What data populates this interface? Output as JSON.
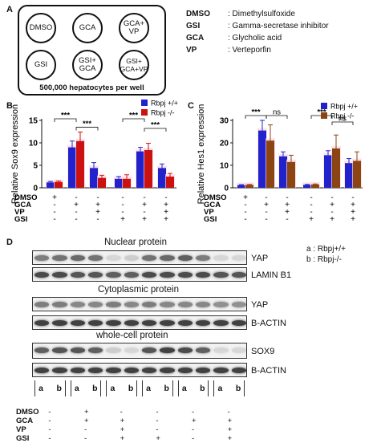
{
  "panel_a": {
    "label": "A",
    "wells": [
      "DMSO",
      "GCA",
      "GCA+\nVP",
      "GSI",
      "GSI+\nGCA",
      "GSI+\nGCA+VP"
    ],
    "caption": "500,000 hepatocytes per well",
    "abbreviations": [
      {
        "key": "DMSO",
        "value": ": Dimethylsulfoxide"
      },
      {
        "key": "GSI",
        "value": ": Gamma-secretase inhibitor"
      },
      {
        "key": "GCA",
        "value": ": Glycholic acid"
      },
      {
        "key": "VP",
        "value": ": Verteporfin"
      }
    ]
  },
  "chart_data": [
    {
      "panel": "B",
      "type": "bar",
      "ylabel": "Relative Sox9 expression",
      "ylim": [
        0,
        15
      ],
      "yticks": [
        0,
        5,
        10,
        15
      ],
      "categories": [
        "DMSO",
        "GCA",
        "GCA+VP",
        "GSI",
        "GSI+GCA",
        "GSI+GCA+VP"
      ],
      "series": [
        {
          "name": "Rbpj +/+",
          "color": "#2222cc",
          "values": [
            1.2,
            9.0,
            4.4,
            2.0,
            8.1,
            4.4
          ],
          "errors": [
            0.2,
            1.4,
            1.2,
            0.5,
            0.9,
            0.9
          ]
        },
        {
          "name": "Rbpj -/-",
          "color": "#cc1111",
          "values": [
            1.3,
            10.4,
            2.2,
            2.0,
            8.4,
            2.5
          ],
          "errors": [
            0.2,
            2.0,
            0.6,
            0.9,
            1.5,
            0.7
          ]
        }
      ],
      "significance": [
        {
          "from": 0,
          "to": 1,
          "label": "***"
        },
        {
          "from": 1,
          "to": 2,
          "label": "***"
        },
        {
          "from": 3,
          "to": 4,
          "label": "***"
        },
        {
          "from": 4,
          "to": 5,
          "label": "***"
        }
      ],
      "treatment_rows": [
        {
          "label": "DMSO",
          "marks": [
            "+",
            "-",
            "-",
            "-",
            "-",
            "-"
          ]
        },
        {
          "label": "GCA",
          "marks": [
            "-",
            "+",
            "+",
            "-",
            "+",
            "+"
          ]
        },
        {
          "label": "VP",
          "marks": [
            "-",
            "-",
            "+",
            "-",
            "-",
            "+"
          ]
        },
        {
          "label": "GSI",
          "marks": [
            "-",
            "-",
            "-",
            "+",
            "+",
            "+"
          ]
        }
      ]
    },
    {
      "panel": "C",
      "type": "bar",
      "ylabel": "Relative Hes1 expression",
      "ylim": [
        0,
        30
      ],
      "yticks": [
        0,
        10,
        20,
        30
      ],
      "categories": [
        "DMSO",
        "GCA",
        "GCA+VP",
        "GSI",
        "GSI+GCA",
        "GSI+GCA+VP"
      ],
      "series": [
        {
          "name": "Rbpj +/+",
          "color": "#2222cc",
          "values": [
            1.2,
            25.5,
            14.0,
            1.3,
            14.5,
            11.0
          ],
          "errors": [
            0.2,
            4.5,
            2.0,
            0.2,
            2.0,
            2.0
          ]
        },
        {
          "name": "Rbpj -/-",
          "color": "#8b4513",
          "values": [
            1.3,
            21.0,
            11.5,
            1.5,
            17.5,
            12.0
          ],
          "errors": [
            0.2,
            7.0,
            3.0,
            0.2,
            6.0,
            4.0
          ]
        }
      ],
      "significance": [
        {
          "from": 0,
          "to": 1,
          "label": "***"
        },
        {
          "from": 1,
          "to": 2,
          "label": "ns"
        },
        {
          "from": 3,
          "to": 4,
          "label": "***"
        },
        {
          "from": 4,
          "to": 5,
          "label": "ns"
        }
      ],
      "treatment_rows": [
        {
          "label": "DMSO",
          "marks": [
            "+",
            "-",
            "-",
            "-",
            "-",
            "-"
          ]
        },
        {
          "label": "GCA",
          "marks": [
            "-",
            "+",
            "+",
            "-",
            "+",
            "+"
          ]
        },
        {
          "label": "VP",
          "marks": [
            "-",
            "-",
            "+",
            "-",
            "-",
            "+"
          ]
        },
        {
          "label": "GSI",
          "marks": [
            "-",
            "-",
            "-",
            "+",
            "+",
            "+"
          ]
        }
      ]
    }
  ],
  "panel_d": {
    "label": "D",
    "legend": [
      "a : Rbpj+/+",
      "b : Rbpj-/-"
    ],
    "sections": {
      "nuclear": "Nuclear protein",
      "cytoplasmic": "Cytoplasmic protein",
      "whole": "whole-cell protein"
    },
    "blots": [
      {
        "label": "YAP",
        "intensity": [
          0.55,
          0.6,
          0.65,
          0.6,
          0.1,
          0.15,
          0.6,
          0.65,
          0.7,
          0.55,
          0.1,
          0.1
        ]
      },
      {
        "label": "LAMIN B1",
        "intensity": [
          0.8,
          0.8,
          0.75,
          0.75,
          0.7,
          0.7,
          0.8,
          0.8,
          0.8,
          0.8,
          0.75,
          0.75
        ]
      },
      {
        "label": "YAP",
        "intensity": [
          0.55,
          0.55,
          0.5,
          0.5,
          0.55,
          0.5,
          0.55,
          0.5,
          0.5,
          0.5,
          0.45,
          0.45
        ]
      },
      {
        "label": "B-ACTIN",
        "intensity": [
          0.85,
          0.85,
          0.85,
          0.85,
          0.85,
          0.85,
          0.85,
          0.85,
          0.85,
          0.85,
          0.85,
          0.85
        ]
      },
      {
        "label": "SOX9",
        "intensity": [
          0.7,
          0.75,
          0.75,
          0.7,
          0.15,
          0.1,
          0.75,
          0.85,
          0.8,
          0.7,
          0.1,
          0.1
        ]
      },
      {
        "label": "B-ACTIN",
        "intensity": [
          0.85,
          0.85,
          0.85,
          0.85,
          0.85,
          0.85,
          0.85,
          0.85,
          0.85,
          0.85,
          0.85,
          0.85
        ]
      }
    ],
    "lanes": [
      "a",
      "b",
      "a",
      "b",
      "a",
      "b",
      "a",
      "b",
      "a",
      "b",
      "a",
      "b"
    ],
    "treatment_rows": [
      {
        "label": "DMSO",
        "marks": [
          "-",
          "+",
          "-",
          "-",
          "-",
          "-"
        ]
      },
      {
        "label": "GCA",
        "marks": [
          "-",
          "+",
          "+",
          "-",
          "+",
          "+"
        ]
      },
      {
        "label": "VP",
        "marks": [
          "-",
          "-",
          "+",
          "-",
          "-",
          "+"
        ]
      },
      {
        "label": "GSI",
        "marks": [
          "-",
          "-",
          "+",
          "+",
          "-",
          "+"
        ]
      }
    ]
  }
}
